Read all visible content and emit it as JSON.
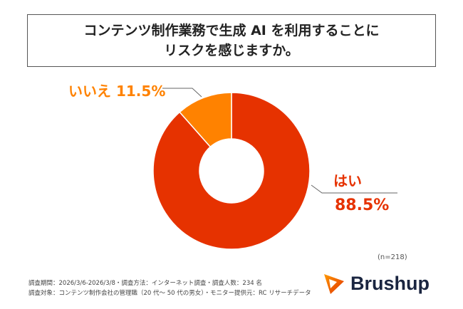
{
  "title": {
    "line1": "コンテンツ制作業務で生成 AI を利用することに",
    "line2": "リスクを感じますか。"
  },
  "chart_data": {
    "type": "pie",
    "donut": true,
    "categories": [
      "はい",
      "いいえ"
    ],
    "values": [
      88.5,
      11.5
    ],
    "labels": [
      "88.5%",
      "11.5%"
    ],
    "colors": [
      "#E63200",
      "#FF8200"
    ],
    "legend": "none"
  },
  "sample": "(n=218)",
  "footer": {
    "line1": "調査期間：2026/3/6-2026/3/8・調査方法：インターネット調査・調査人数：234 名",
    "line2": "調査対象：コンテンツ制作会社の管理職（20 代〜 50 代の男女）・モニター提供元：RC リサーチデータ"
  },
  "logo": {
    "text": "Brushup"
  }
}
